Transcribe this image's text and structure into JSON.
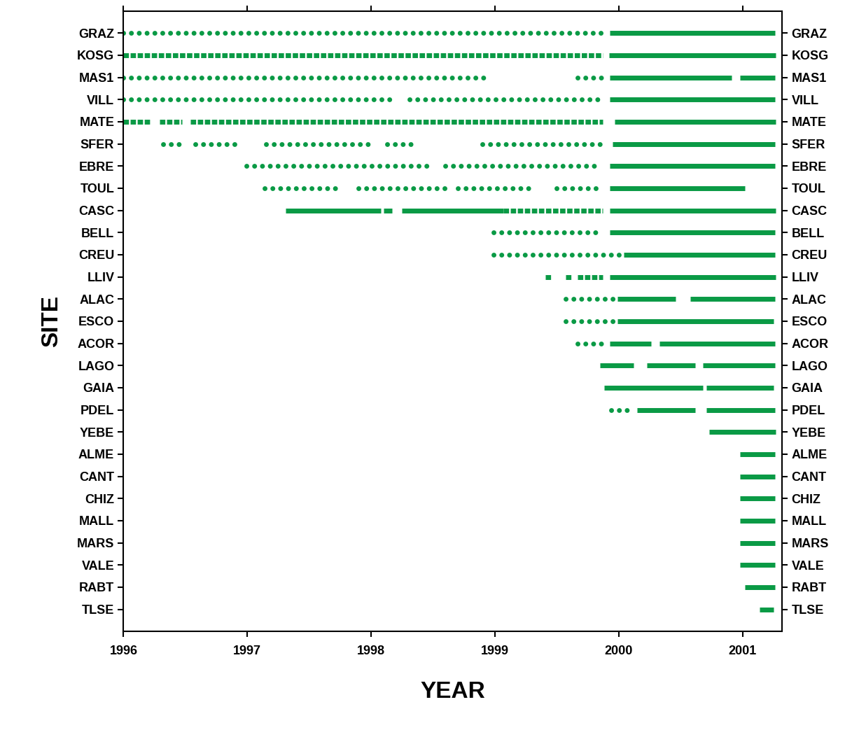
{
  "chart_data": {
    "type": "timeline",
    "x_label": "YEAR",
    "y_label": "SITE",
    "color": "#0a9a45",
    "xlim": [
      1996,
      2001.32
    ],
    "xticks": [
      1996,
      1997,
      1998,
      1999,
      2000,
      2001
    ],
    "categories": [
      "GRAZ",
      "KOSG",
      "MAS1",
      "VILL",
      "MATE",
      "SFER",
      "EBRE",
      "TOUL",
      "CASC",
      "BELL",
      "CREU",
      "LLIV",
      "ALAC",
      "ESCO",
      "ACOR",
      "LAGO",
      "GAIA",
      "PDEL",
      "YEBE",
      "ALME",
      "CANT",
      "CHIZ",
      "MALL",
      "MARS",
      "VALE",
      "RABT",
      "TLSE"
    ],
    "values": [
      [
        {
          "start": 1996.0,
          "end": 1999.86,
          "line_style": "dotted"
        },
        {
          "start": 1999.93,
          "end": 2001.26,
          "line_style": "solid"
        }
      ],
      [
        {
          "start": 1996.0,
          "end": 1999.87,
          "line_style": "dashed"
        },
        {
          "start": 1999.92,
          "end": 2001.27,
          "line_style": "solid"
        }
      ],
      [
        {
          "start": 1996.0,
          "end": 1998.96,
          "line_style": "dotted"
        },
        {
          "start": 1999.67,
          "end": 1999.86,
          "line_style": "dotted"
        },
        {
          "start": 1999.93,
          "end": 2000.91,
          "line_style": "solid"
        },
        {
          "start": 2000.98,
          "end": 2001.26,
          "line_style": "solid"
        }
      ],
      [
        {
          "start": 1996.0,
          "end": 1998.19,
          "line_style": "dotted"
        },
        {
          "start": 1998.31,
          "end": 1999.86,
          "line_style": "dotted"
        },
        {
          "start": 1999.93,
          "end": 2001.26,
          "line_style": "solid"
        }
      ],
      [
        {
          "start": 1996.0,
          "end": 1996.21,
          "line_style": "dashed"
        },
        {
          "start": 1996.29,
          "end": 1996.47,
          "line_style": "dashed"
        },
        {
          "start": 1996.54,
          "end": 1999.87,
          "line_style": "dashed"
        },
        {
          "start": 1999.97,
          "end": 2001.27,
          "line_style": "solid"
        }
      ],
      [
        {
          "start": 1996.32,
          "end": 1996.49,
          "line_style": "dotted"
        },
        {
          "start": 1996.58,
          "end": 1996.95,
          "line_style": "dotted"
        },
        {
          "start": 1997.15,
          "end": 1998.03,
          "line_style": "dotted"
        },
        {
          "start": 1998.13,
          "end": 1998.37,
          "line_style": "dotted"
        },
        {
          "start": 1998.9,
          "end": 1999.86,
          "line_style": "dotted"
        },
        {
          "start": 1999.95,
          "end": 2001.26,
          "line_style": "solid"
        }
      ],
      [
        {
          "start": 1996.99,
          "end": 1998.45,
          "line_style": "dotted"
        },
        {
          "start": 1998.6,
          "end": 1999.86,
          "line_style": "dotted"
        },
        {
          "start": 1999.93,
          "end": 2001.26,
          "line_style": "solid"
        }
      ],
      [
        {
          "start": 1997.14,
          "end": 1997.76,
          "line_style": "dotted"
        },
        {
          "start": 1997.9,
          "end": 1998.64,
          "line_style": "dotted"
        },
        {
          "start": 1998.7,
          "end": 1999.3,
          "line_style": "dotted"
        },
        {
          "start": 1999.5,
          "end": 1999.86,
          "line_style": "dotted"
        },
        {
          "start": 1999.93,
          "end": 2001.02,
          "line_style": "solid"
        }
      ],
      [
        {
          "start": 1997.31,
          "end": 1998.08,
          "line_style": "solid"
        },
        {
          "start": 1998.1,
          "end": 1998.17,
          "line_style": "solid"
        },
        {
          "start": 1998.25,
          "end": 1999.07,
          "line_style": "solid"
        },
        {
          "start": 1999.07,
          "end": 1999.87,
          "line_style": "dashed"
        },
        {
          "start": 1999.93,
          "end": 2001.27,
          "line_style": "solid"
        }
      ],
      [
        {
          "start": 1998.99,
          "end": 1999.86,
          "line_style": "dotted"
        },
        {
          "start": 1999.93,
          "end": 2001.26,
          "line_style": "solid"
        }
      ],
      [
        {
          "start": 1998.99,
          "end": 2000.03,
          "line_style": "dotted"
        },
        {
          "start": 2000.04,
          "end": 2001.26,
          "line_style": "solid"
        }
      ],
      [
        {
          "start": 1999.41,
          "end": 1999.46,
          "line_style": "dashed"
        },
        {
          "start": 1999.57,
          "end": 1999.62,
          "line_style": "dashed"
        },
        {
          "start": 1999.67,
          "end": 1999.87,
          "line_style": "dashed"
        },
        {
          "start": 1999.93,
          "end": 2001.27,
          "line_style": "solid"
        }
      ],
      [
        {
          "start": 1999.57,
          "end": 1999.97,
          "line_style": "dotted"
        },
        {
          "start": 1999.99,
          "end": 2000.46,
          "line_style": "solid"
        },
        {
          "start": 2000.58,
          "end": 2001.26,
          "line_style": "solid"
        }
      ],
      [
        {
          "start": 1999.57,
          "end": 1999.97,
          "line_style": "dotted"
        },
        {
          "start": 1999.99,
          "end": 2001.25,
          "line_style": "solid"
        }
      ],
      [
        {
          "start": 1999.67,
          "end": 1999.86,
          "line_style": "dotted"
        },
        {
          "start": 1999.93,
          "end": 2000.26,
          "line_style": "solid"
        },
        {
          "start": 2000.33,
          "end": 2001.26,
          "line_style": "solid"
        }
      ],
      [
        {
          "start": 1999.85,
          "end": 2000.12,
          "line_style": "solid"
        },
        {
          "start": 2000.23,
          "end": 2000.62,
          "line_style": "solid"
        },
        {
          "start": 2000.68,
          "end": 2001.26,
          "line_style": "solid"
        }
      ],
      [
        {
          "start": 1999.88,
          "end": 2000.68,
          "line_style": "solid"
        },
        {
          "start": 2000.71,
          "end": 2001.25,
          "line_style": "solid"
        }
      ],
      [
        {
          "start": 1999.94,
          "end": 2000.11,
          "line_style": "dotted"
        },
        {
          "start": 2000.15,
          "end": 2000.62,
          "line_style": "solid"
        },
        {
          "start": 2000.71,
          "end": 2001.26,
          "line_style": "solid"
        }
      ],
      [
        {
          "start": 2000.73,
          "end": 2001.27,
          "line_style": "solid"
        }
      ],
      [
        {
          "start": 2000.98,
          "end": 2001.26,
          "line_style": "solid"
        }
      ],
      [
        {
          "start": 2000.98,
          "end": 2001.26,
          "line_style": "solid"
        }
      ],
      [
        {
          "start": 2000.98,
          "end": 2001.26,
          "line_style": "solid"
        }
      ],
      [
        {
          "start": 2000.98,
          "end": 2001.26,
          "line_style": "solid"
        }
      ],
      [
        {
          "start": 2000.98,
          "end": 2001.26,
          "line_style": "solid"
        }
      ],
      [
        {
          "start": 2000.98,
          "end": 2001.26,
          "line_style": "solid"
        }
      ],
      [
        {
          "start": 2001.02,
          "end": 2001.26,
          "line_style": "solid"
        }
      ],
      [
        {
          "start": 2001.14,
          "end": 2001.25,
          "line_style": "solid"
        }
      ]
    ]
  }
}
